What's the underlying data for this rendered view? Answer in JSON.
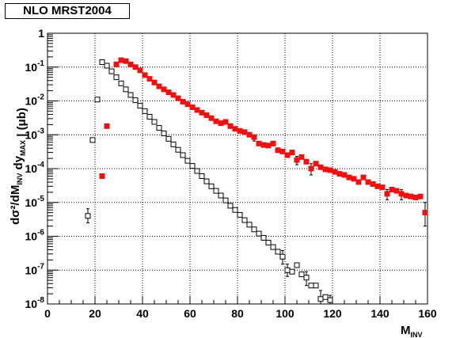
{
  "chart_data": {
    "type": "scatter",
    "title": "NLO MRST2004",
    "xlabel": "M_INV",
    "ylabel": "dσ²/dM_INV dy_MAX | (μb)",
    "xlim": [
      0,
      160
    ],
    "ylim": [
      1e-08,
      1
    ],
    "yscale": "log",
    "grid": true,
    "x_ticks": [
      "0",
      "20",
      "40",
      "60",
      "80",
      "100",
      "120",
      "140",
      "160"
    ],
    "series": [
      {
        "marker": "open-square",
        "color": "#000000",
        "points": [
          [
            17,
            4e-06
          ],
          [
            19,
            0.0007
          ],
          [
            21,
            0.011
          ],
          [
            23,
            0.14
          ],
          [
            25,
            0.11
          ],
          [
            27,
            0.075
          ],
          [
            29,
            0.05
          ],
          [
            31,
            0.033
          ],
          [
            33,
            0.022
          ],
          [
            35,
            0.015
          ],
          [
            37,
            0.0105
          ],
          [
            39,
            0.0072
          ],
          [
            41,
            0.005
          ],
          [
            43,
            0.0034
          ],
          [
            45,
            0.0024
          ],
          [
            47,
            0.0016
          ],
          [
            49,
            0.0011
          ],
          [
            51,
            0.00076
          ],
          [
            53,
            0.00052
          ],
          [
            55,
            0.00036
          ],
          [
            57,
            0.00025
          ],
          [
            59,
            0.00017
          ],
          [
            61,
            0.00012
          ],
          [
            63,
            8.5e-05
          ],
          [
            65,
            6e-05
          ],
          [
            67,
            4.2e-05
          ],
          [
            69,
            3e-05
          ],
          [
            71,
            2.2e-05
          ],
          [
            73,
            1.6e-05
          ],
          [
            75,
            1.15e-05
          ],
          [
            77,
            8e-06
          ],
          [
            79,
            6e-06
          ],
          [
            81,
            4.3e-06
          ],
          [
            83,
            3e-06
          ],
          [
            85,
            2.2e-06
          ],
          [
            87,
            1.6e-06
          ],
          [
            89,
            1.2e-06
          ],
          [
            91,
            9e-07
          ],
          [
            93,
            6.5e-07
          ],
          [
            95,
            4.8e-07
          ],
          [
            97,
            3.5e-07
          ],
          [
            99,
            2.5e-07
          ],
          [
            101,
            1e-07
          ],
          [
            103,
            9e-08
          ],
          [
            105,
            1.4e-07
          ],
          [
            107,
            7.5e-08
          ],
          [
            109,
            6e-08
          ],
          [
            111,
            3.5e-08
          ],
          [
            113,
            3.5e-08
          ],
          [
            115,
            1.4e-08
          ],
          [
            117,
            1.6e-08
          ],
          [
            119,
            1.3e-08
          ]
        ],
        "errors": {
          "17": [
            2.5e-06,
            6.5e-06
          ],
          "99": [
            1.5e-07,
            3.8e-07
          ],
          "101": [
            6.5e-08,
            1.5e-07
          ],
          "109": [
            3.5e-08,
            9e-08
          ],
          "115": [
            8e-09,
            2.5e-08
          ],
          "119": [
            9e-09,
            1.8e-08
          ]
        }
      },
      {
        "marker": "filled-square",
        "color": "#ee1111",
        "points": [
          [
            23,
            6e-05
          ],
          [
            25,
            0.0018
          ],
          [
            29,
            0.12
          ],
          [
            31,
            0.16
          ],
          [
            33,
            0.15
          ],
          [
            35,
            0.12
          ],
          [
            37,
            0.1
          ],
          [
            39,
            0.08
          ],
          [
            41,
            0.058
          ],
          [
            43,
            0.045
          ],
          [
            45,
            0.035
          ],
          [
            47,
            0.027
          ],
          [
            49,
            0.022
          ],
          [
            51,
            0.018
          ],
          [
            53,
            0.015
          ],
          [
            55,
            0.012
          ],
          [
            57,
            0.0095
          ],
          [
            59,
            0.008
          ],
          [
            61,
            0.0065
          ],
          [
            63,
            0.0054
          ],
          [
            65,
            0.0045
          ],
          [
            67,
            0.0038
          ],
          [
            69,
            0.0031
          ],
          [
            71,
            0.0025
          ],
          [
            73,
            0.0022
          ],
          [
            75,
            0.0024
          ],
          [
            77,
            0.0018
          ],
          [
            79,
            0.0015
          ],
          [
            81,
            0.0013
          ],
          [
            83,
            0.0012
          ],
          [
            85,
            0.001
          ],
          [
            87,
            0.00085
          ],
          [
            89,
            0.00055
          ],
          [
            91,
            0.0005
          ],
          [
            93,
            0.00048
          ],
          [
            95,
            0.00055
          ],
          [
            97,
            0.00035
          ],
          [
            99,
            0.00032
          ],
          [
            101,
            0.00025
          ],
          [
            103,
            0.0003
          ],
          [
            105,
            0.00018
          ],
          [
            107,
            0.00022
          ],
          [
            109,
            0.00016
          ],
          [
            111,
            0.0001
          ],
          [
            113,
            0.00014
          ],
          [
            115,
            0.00011
          ],
          [
            117,
            9.5e-05
          ],
          [
            119,
            9e-05
          ],
          [
            121,
            8e-05
          ],
          [
            123,
            7e-05
          ],
          [
            125,
            6.5e-05
          ],
          [
            127,
            5.5e-05
          ],
          [
            129,
            5e-05
          ],
          [
            131,
            4e-05
          ],
          [
            133,
            5.5e-05
          ],
          [
            135,
            4e-05
          ],
          [
            137,
            3.5e-05
          ],
          [
            139,
            3e-05
          ],
          [
            141,
            2.8e-05
          ],
          [
            143,
            1.8e-05
          ],
          [
            145,
            2.4e-05
          ],
          [
            147,
            2.2e-05
          ],
          [
            149,
            1.8e-05
          ],
          [
            151,
            1.6e-05
          ],
          [
            153,
            1.5e-05
          ],
          [
            155,
            1.4e-05
          ],
          [
            157,
            1.5e-05
          ],
          [
            159,
            5e-06
          ]
        ],
        "errors": {
          "87": [
            0.00065,
            0.001
          ],
          "105": [
            0.00013,
            0.00023
          ],
          "111": [
            6.5e-05,
            0.00014
          ],
          "143": [
            1.2e-05,
            2.4e-05
          ],
          "149": [
            1.2e-05,
            2.4e-05
          ],
          "159": [
            2e-06,
            1e-05
          ]
        }
      }
    ]
  }
}
